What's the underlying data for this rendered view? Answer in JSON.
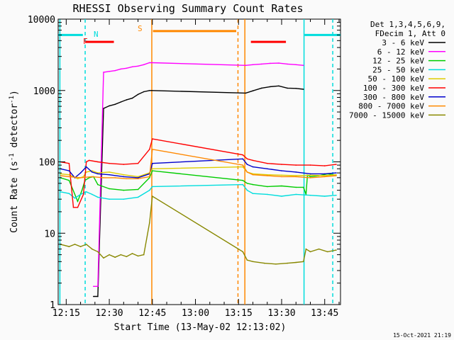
{
  "chart_data": {
    "type": "line",
    "title": "RHESSI Observing Summary Count Rates",
    "xlabel": "Start Time (13-May-02 12:13:02)",
    "ylabel": "Count Rate (s⁻¹ detector⁻¹)",
    "ylabel_main": "Count Rate (s",
    "ylabel_sup1": "-1",
    "ylabel_mid": " detector",
    "ylabel_sup2": "-1",
    "ylabel_end": ")",
    "yscale": "log",
    "ylim": [
      1,
      10000
    ],
    "xlim_minutes": [
      12.2,
      110.5
    ],
    "x_ticks": [
      {
        "label": "12:15",
        "min": 15
      },
      {
        "label": "12:30",
        "min": 30
      },
      {
        "label": "12:45",
        "min": 45
      },
      {
        "label": "13:00",
        "min": 60
      },
      {
        "label": "13:15",
        "min": 75
      },
      {
        "label": "13:30",
        "min": 90
      },
      {
        "label": "13:45",
        "min": 105
      }
    ],
    "y_ticks": [
      {
        "label": "1",
        "value": 1
      },
      {
        "label": "10",
        "value": 10
      },
      {
        "label": "100",
        "value": 100
      },
      {
        "label": "1000",
        "value": 1000
      },
      {
        "label": "10000",
        "value": 10000
      }
    ],
    "legend_header": [
      "Det 1,3,4,5,6,9,",
      "FDecim 1, Att 0"
    ],
    "series": [
      {
        "name": "3 - 6 keV",
        "color": "#000000",
        "x": [
          24.5,
          26,
          28,
          30,
          32,
          34,
          36,
          38,
          40,
          42,
          44,
          44.8,
          77.5,
          80,
          83,
          86,
          89,
          92,
          95,
          97.6
        ],
        "y": [
          1.3,
          1.3,
          560,
          610,
          640,
          690,
          740,
          780,
          880,
          960,
          1000,
          1000,
          920,
          990,
          1080,
          1130,
          1160,
          1080,
          1070,
          1040
        ]
      },
      {
        "name": "6 - 12 keV",
        "color": "#ff00ff",
        "x": [
          24.5,
          26,
          28,
          30,
          32,
          34,
          36,
          38,
          40,
          42,
          44,
          44.8,
          77.5,
          80,
          83,
          86,
          89,
          92,
          95,
          97.6
        ],
        "y": [
          1.8,
          1.8,
          1800,
          1850,
          1900,
          2000,
          2050,
          2150,
          2200,
          2300,
          2450,
          2450,
          2250,
          2300,
          2350,
          2400,
          2420,
          2350,
          2300,
          2250
        ]
      },
      {
        "name": "12 - 25 keV",
        "color": "#00cc00",
        "x": [
          13,
          16,
          19,
          20.5,
          21.5,
          23,
          24.5,
          26,
          30,
          35,
          40,
          44,
          45,
          76.5,
          78,
          80,
          85,
          90,
          95,
          97.6,
          98.5,
          99,
          100,
          103,
          106,
          109
        ],
        "y": [
          60,
          55,
          28,
          40,
          55,
          60,
          62,
          48,
          42,
          40,
          41,
          60,
          75,
          55,
          50,
          48,
          45,
          46,
          44,
          44,
          35,
          65,
          62,
          64,
          68,
          65
        ]
      },
      {
        "name": "25 - 50 keV",
        "color": "#00dddd",
        "x": [
          13,
          16,
          18,
          20,
          22,
          24,
          26,
          30,
          35,
          40,
          44,
          45,
          76.5,
          78,
          80,
          85,
          90,
          95,
          100,
          105,
          109
        ],
        "y": [
          38,
          36,
          31,
          35,
          38,
          35,
          32,
          30,
          30,
          32,
          40,
          45,
          48,
          40,
          36,
          35,
          33,
          35,
          34,
          33,
          34
        ]
      },
      {
        "name": "50 - 100 keV",
        "color": "#ddcc00",
        "x": [
          13,
          16,
          19,
          21,
          22,
          24,
          26,
          30,
          35,
          40,
          44,
          45,
          76.5,
          78,
          80,
          85,
          90,
          95,
          100,
          105,
          109
        ],
        "y": [
          68,
          66,
          58,
          62,
          72,
          75,
          70,
          72,
          66,
          62,
          70,
          80,
          85,
          72,
          68,
          66,
          65,
          64,
          65,
          64,
          66
        ]
      },
      {
        "name": "100 - 300 keV",
        "color": "#ff0000",
        "x": [
          13,
          16,
          17.5,
          19,
          21,
          22,
          23,
          26,
          30,
          35,
          40,
          44,
          45,
          76.5,
          78,
          80,
          85,
          90,
          95,
          100,
          105,
          109
        ],
        "y": [
          100,
          95,
          23,
          23,
          35,
          100,
          105,
          100,
          95,
          92,
          95,
          150,
          210,
          125,
          110,
          105,
          95,
          92,
          90,
          90,
          88,
          92
        ]
      },
      {
        "name": "300 - 800 keV",
        "color": "#0000cc",
        "x": [
          13,
          16,
          18,
          20,
          22,
          24,
          26,
          30,
          35,
          40,
          44,
          45,
          76.5,
          78,
          80,
          85,
          90,
          95,
          100,
          105,
          109
        ],
        "y": [
          80,
          75,
          60,
          70,
          85,
          72,
          68,
          66,
          62,
          60,
          68,
          95,
          110,
          92,
          85,
          80,
          75,
          72,
          68,
          68,
          70
        ]
      },
      {
        "name": "800 - 7000 keV",
        "color": "#ff8800",
        "x": [
          13,
          16,
          20,
          24,
          28,
          32,
          36,
          40,
          44,
          45,
          76.5,
          78,
          80,
          85,
          90,
          95,
          100,
          105,
          109
        ],
        "y": [
          64,
          62,
          60,
          62,
          60,
          60,
          58,
          58,
          62,
          150,
          90,
          72,
          66,
          64,
          62,
          62,
          60,
          62,
          64
        ]
      },
      {
        "name": "7000 - 15000 keV",
        "color": "#888800",
        "x": [
          13,
          16,
          18,
          20,
          22,
          24,
          26,
          28,
          30,
          32,
          34,
          36,
          38,
          40,
          42,
          44,
          45,
          76.5,
          78,
          80,
          84,
          88,
          92,
          95,
          97.6,
          98.5,
          100,
          103,
          106,
          109
        ],
        "y": [
          7,
          6.5,
          7,
          6.5,
          7,
          6,
          5.5,
          4.5,
          5,
          4.6,
          5,
          4.7,
          5.2,
          4.8,
          5,
          14,
          33,
          5.5,
          4.2,
          4,
          3.8,
          3.7,
          3.8,
          3.9,
          4,
          6,
          5.5,
          6,
          5.5,
          5.8
        ]
      }
    ],
    "annotations": [
      {
        "text": "N",
        "color": "#00dddd"
      },
      {
        "text": "F",
        "color": "#ff0000"
      },
      {
        "text": "S",
        "color": "#ff8800"
      }
    ],
    "flags": [
      {
        "type": "N",
        "color": "#00dddd",
        "x1": 12.2,
        "x2": 20.8,
        "level": 6000
      },
      {
        "type": "N",
        "color": "#00dddd",
        "x1": 98.0,
        "x2": 110.5,
        "level": 6000
      },
      {
        "type": "F",
        "color": "#ff0000",
        "x1": 21.6,
        "x2": 31.6,
        "level": 4800
      },
      {
        "type": "F",
        "color": "#ff0000",
        "x1": 79.3,
        "x2": 91.5,
        "level": 4800
      },
      {
        "type": "S",
        "color": "#ff8800",
        "x1": 45.2,
        "x2": 74.2,
        "level": 6800
      }
    ],
    "vlines": [
      {
        "x": 12.8,
        "color": "#00dddd",
        "style": "solid"
      },
      {
        "x": 21.6,
        "color": "#00dddd",
        "style": "dashed"
      },
      {
        "x": 44.8,
        "color": "#ff8800",
        "style": "solid"
      },
      {
        "x": 74.8,
        "color": "#ff8800",
        "style": "dashed"
      },
      {
        "x": 77.2,
        "color": "#ff8800",
        "style": "solid"
      },
      {
        "x": 97.8,
        "color": "#00dddd",
        "style": "solid"
      },
      {
        "x": 107.8,
        "color": "#00dddd",
        "style": "dashed"
      }
    ],
    "legend_placement": "right",
    "grid": false
  },
  "footer_timestamp": "15-Oct-2021 21:19"
}
